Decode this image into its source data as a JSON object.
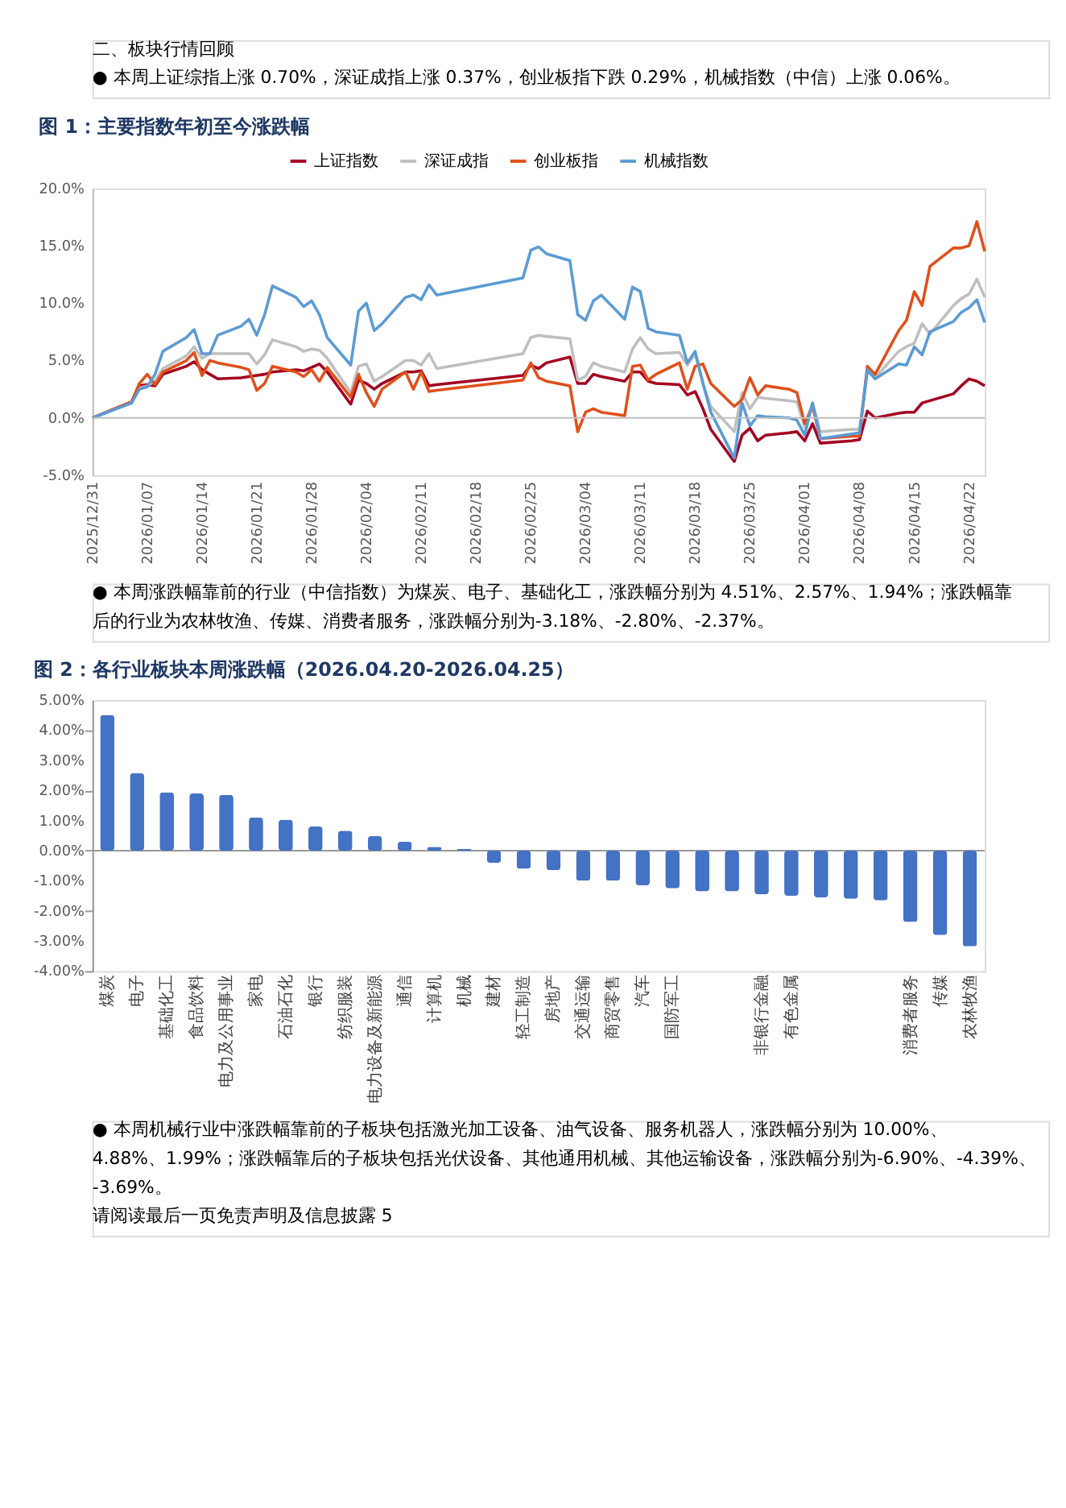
{
  "chart_data": [
    {
      "type": "line",
      "title": "图 1：主要指数年初至今涨跌幅",
      "annotations": [
        "二、板块行情回顾",
        "●  本周上证综指上涨 0.70%，深证成指上涨 0.37%，创业板指下跌 0.29%，机械指数（中信）上涨 0.06%。"
      ],
      "x": [
        "2025-12-31",
        "2026-01-05",
        "2026-01-06",
        "2026-01-07",
        "2026-01-08",
        "2026-01-09",
        "2026-01-12",
        "2026-01-13",
        "2026-01-14",
        "2026-01-15",
        "2026-01-16",
        "2026-01-19",
        "2026-01-20",
        "2026-01-21",
        "2026-01-22",
        "2026-01-23",
        "2026-01-26",
        "2026-01-27",
        "2026-01-28",
        "2026-01-29",
        "2026-01-30",
        "2026-02-02",
        "2026-02-03",
        "2026-02-04",
        "2026-02-05",
        "2026-02-06",
        "2026-02-09",
        "2026-02-10",
        "2026-02-11",
        "2026-02-12",
        "2026-02-13",
        "2026-02-24",
        "2026-02-25",
        "2026-02-26",
        "2026-02-27",
        "2026-03-02",
        "2026-03-03",
        "2026-03-04",
        "2026-03-05",
        "2026-03-06",
        "2026-03-09",
        "2026-03-10",
        "2026-03-11",
        "2026-03-12",
        "2026-03-13",
        "2026-03-16",
        "2026-03-17",
        "2026-03-18",
        "2026-03-19",
        "2026-03-20",
        "2026-03-23",
        "2026-03-24",
        "2026-03-25",
        "2026-03-26",
        "2026-03-27",
        "2026-03-30",
        "2026-03-31",
        "2026-04-01",
        "2026-04-02",
        "2026-04-03",
        "2026-04-07",
        "2026-04-08",
        "2026-04-09",
        "2026-04-10",
        "2026-04-13",
        "2026-04-14",
        "2026-04-15",
        "2026-04-16",
        "2026-04-17",
        "2026-04-20",
        "2026-04-21",
        "2026-04-22",
        "2026-04-23",
        "2026-04-24"
      ],
      "series": [
        {
          "name": "上证指数",
          "color": "#a50021",
          "values": [
            0,
            1.4,
            2.8,
            2.9,
            2.8,
            3.8,
            4.5,
            4.9,
            4.2,
            3.8,
            3.4,
            3.5,
            3.6,
            3.7,
            3.8,
            4.0,
            4.2,
            4.1,
            4.4,
            4.7,
            4.0,
            1.2,
            3.3,
            3.0,
            2.5,
            3.0,
            4.0,
            4.0,
            4.1,
            2.8,
            2.9,
            3.7,
            4.6,
            4.3,
            4.8,
            5.3,
            3.0,
            3.0,
            3.8,
            3.6,
            3.2,
            4.0,
            4.0,
            3.2,
            3.0,
            2.9,
            2.0,
            2.3,
            0.8,
            -1.0,
            -3.8,
            -1.5,
            -0.9,
            -2.0,
            -1.5,
            -1.3,
            -1.2,
            -2.0,
            -0.5,
            -2.2,
            -2.0,
            -1.9,
            0.6,
            0.0,
            0.4,
            0.5,
            0.5,
            1.3,
            1.5,
            2.1,
            2.8,
            3.4,
            3.2,
            2.8
          ]
        },
        {
          "name": "深证成指",
          "color": "#bfbfbf",
          "values": [
            0,
            1.3,
            2.6,
            2.8,
            3.2,
            4.3,
            5.4,
            6.2,
            5.2,
            5.6,
            5.6,
            5.6,
            5.6,
            4.7,
            5.5,
            6.8,
            6.2,
            5.8,
            6.0,
            5.9,
            5.2,
            2.2,
            4.5,
            4.7,
            3.2,
            3.6,
            5.0,
            5.0,
            4.6,
            5.6,
            4.3,
            5.6,
            7.0,
            7.2,
            7.1,
            6.9,
            3.3,
            3.6,
            4.8,
            4.5,
            4.0,
            6.0,
            7.0,
            6.0,
            5.6,
            5.7,
            4.6,
            5.6,
            3.0,
            1.0,
            -1.2,
            2.2,
            0.8,
            1.8,
            1.7,
            1.5,
            1.4,
            -0.8,
            1.3,
            -1.2,
            -1.0,
            -1.0,
            4.0,
            3.5,
            5.8,
            6.2,
            6.5,
            8.2,
            7.3,
            9.8,
            10.4,
            10.8,
            12.1,
            10.5
          ]
        },
        {
          "name": "创业板指",
          "color": "#e0501b",
          "values": [
            0,
            1.4,
            3.0,
            3.8,
            2.9,
            4.0,
            5.0,
            5.7,
            3.7,
            5.0,
            4.8,
            4.4,
            4.2,
            2.4,
            3.0,
            4.5,
            4.0,
            3.6,
            4.2,
            3.2,
            4.4,
            1.8,
            3.8,
            2.2,
            1.0,
            2.5,
            4.0,
            2.5,
            4.0,
            2.3,
            2.4,
            3.3,
            4.8,
            3.5,
            3.2,
            2.8,
            -1.2,
            0.5,
            0.8,
            0.5,
            0.2,
            4.5,
            4.6,
            3.3,
            3.8,
            4.8,
            2.5,
            4.5,
            4.7,
            3.0,
            1.0,
            1.6,
            3.5,
            2.0,
            2.8,
            2.5,
            2.2,
            -0.5,
            1.0,
            -1.8,
            -1.6,
            -1.6,
            4.5,
            3.8,
            7.6,
            8.5,
            11.0,
            9.8,
            13.2,
            14.8,
            14.8,
            15.0,
            17.1,
            14.5
          ]
        },
        {
          "name": "机械指数",
          "color": "#5b9bd5",
          "values": [
            0,
            1.3,
            2.5,
            2.7,
            3.8,
            5.8,
            7.0,
            7.7,
            5.6,
            5.6,
            7.2,
            8.0,
            8.6,
            7.2,
            9.0,
            11.5,
            10.5,
            9.7,
            10.2,
            9.0,
            7.0,
            4.6,
            9.3,
            10.0,
            7.6,
            8.2,
            10.5,
            10.7,
            10.3,
            11.6,
            10.7,
            12.2,
            14.6,
            14.9,
            14.3,
            13.7,
            9.0,
            8.5,
            10.2,
            10.7,
            8.6,
            11.4,
            11.0,
            7.8,
            7.5,
            7.2,
            4.8,
            5.8,
            3.0,
            0.5,
            -3.5,
            1.3,
            -0.7,
            0.2,
            0.1,
            0.0,
            -0.2,
            -1.5,
            1.3,
            -1.8,
            -1.4,
            -1.3,
            4.2,
            3.4,
            4.7,
            4.6,
            6.2,
            5.5,
            7.5,
            8.4,
            9.2,
            9.6,
            10.3,
            8.3
          ]
        }
      ],
      "xlim": [
        "2025-12-31",
        "2026-04-24"
      ],
      "xticks": [
        {
          "value": "2025-12-31",
          "label": "2025/12/31"
        },
        {
          "value": "2026-01-07",
          "label": "2026/01/07"
        },
        {
          "value": "2026-01-14",
          "label": "2026/01/14"
        },
        {
          "value": "2026-01-21",
          "label": "2026/01/21"
        },
        {
          "value": "2026-01-28",
          "label": "2026/01/28"
        },
        {
          "value": "2026-02-04",
          "label": "2026/02/04"
        },
        {
          "value": "2026-02-11",
          "label": "2026/02/11"
        },
        {
          "value": "2026-02-18",
          "label": "2026/02/18"
        },
        {
          "value": "2026-02-25",
          "label": "2026/02/25"
        },
        {
          "value": "2026-03-04",
          "label": "2026/03/04"
        },
        {
          "value": "2026-03-11",
          "label": "2026/03/11"
        },
        {
          "value": "2026-03-18",
          "label": "2026/03/18"
        },
        {
          "value": "2026-03-25",
          "label": "2026/03/25"
        },
        {
          "value": "2026-04-01",
          "label": "2026/04/01"
        },
        {
          "value": "2026-04-08",
          "label": "2026/04/08"
        },
        {
          "value": "2026-04-15",
          "label": "2026/04/15"
        },
        {
          "value": "2026-04-22",
          "label": "2026/04/22"
        }
      ],
      "ylim": [
        -5,
        20
      ],
      "yticks": [
        {
          "value": -5,
          "label": "-5.0%"
        },
        {
          "value": 0,
          "label": "0.0%"
        },
        {
          "value": 5,
          "label": "5.0%"
        },
        {
          "value": 10,
          "label": "10.0%"
        },
        {
          "value": 15,
          "label": "15.0%"
        },
        {
          "value": 20,
          "label": "20.0%"
        }
      ],
      "ref_lines": [
        {
          "axis": "y",
          "value": 0,
          "color": "#bfbfbf"
        }
      ],
      "legend": "top",
      "marker": "none",
      "line_style": "solid"
    },
    {
      "type": "bar",
      "title": "图 2：各行业板块本周涨跌幅（2026.04.20-2026.04.25）",
      "annotations": [
        "●  本周涨跌幅靠前的行业（中信指数）为煤炭、电子、基础化工，涨跌幅分别为 4.51%、2.57%、1.94%；涨跌幅靠后的行业为农林牧渔、传媒、消费者服务，涨跌幅分别为-3.18%、-2.80%、-2.37%。",
        "●  本周机械行业中涨跌幅靠前的子板块包括激光加工设备、油气设备、服务机器人，涨跌幅分别为 10.00%、4.88%、1.99%；涨跌幅靠后的子板块包括光伏设备、其他通用机械、其他运输设备，涨跌幅分别为-6.90%、-4.39%、-3.69%。",
        "请阅读最后一页免责声明及信息披露  5"
      ],
      "categories": [
        "煤炭",
        "电子",
        "基础化工",
        "食品饮料",
        "电力及公用事业",
        "家电",
        "石油石化",
        "银行",
        "纺织服装",
        "电力设备及新能源",
        "通信",
        "计算机",
        "机械",
        "建材",
        "轻工制造",
        "房地产",
        "交通运输",
        "商贸零售",
        "汽车",
        "国防军工",
        null,
        null,
        "非银行金融",
        "有色金属",
        null,
        null,
        null,
        "消费者服务",
        "传媒",
        "农林牧渔"
      ],
      "values": [
        4.51,
        2.57,
        1.94,
        1.9,
        1.85,
        1.1,
        1.03,
        0.8,
        0.66,
        0.48,
        0.3,
        0.13,
        0.06,
        -0.4,
        -0.6,
        -0.65,
        -1.0,
        -1.0,
        -1.15,
        -1.25,
        -1.35,
        -1.35,
        -1.45,
        -1.5,
        -1.55,
        -1.6,
        -1.65,
        -2.37,
        -2.8,
        -3.18
      ],
      "color": "#4472c4",
      "ylim": [
        -4,
        5
      ],
      "yticks": [
        {
          "value": -4,
          "label": "-4.00%"
        },
        {
          "value": -3,
          "label": "-3.00%"
        },
        {
          "value": -2,
          "label": "-2.00%"
        },
        {
          "value": -1,
          "label": "-1.00%"
        },
        {
          "value": 0,
          "label": "0.00%"
        },
        {
          "value": 1,
          "label": "1.00%"
        },
        {
          "value": 2,
          "label": "2.00%"
        },
        {
          "value": 3,
          "label": "3.00%"
        },
        {
          "value": 4,
          "label": "4.00%"
        },
        {
          "value": 5,
          "label": "5.00%"
        }
      ],
      "ref_lines": [
        {
          "axis": "y",
          "value": 0,
          "color": "#999999"
        }
      ]
    }
  ]
}
